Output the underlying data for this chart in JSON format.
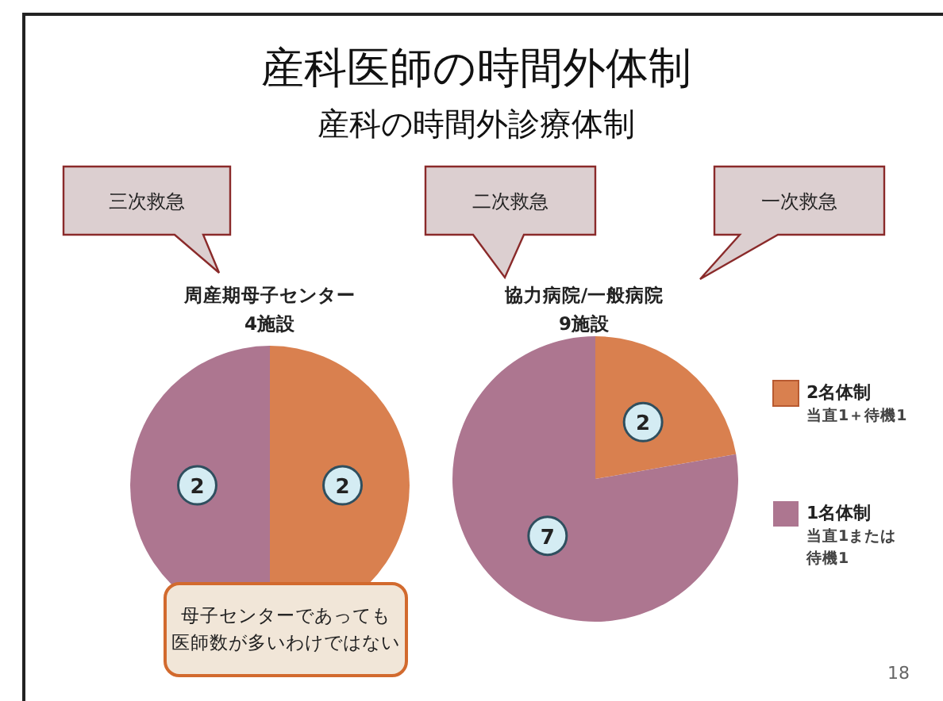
{
  "chart_data": [
    {
      "type": "other",
      "title": "産科医師の時間外体制",
      "subtitle": "産科の時間外診療体制",
      "annotations": [
        "三次救急",
        "二次救急",
        "一次救急",
        "母子センターであっても医師数が多いわけではない",
        "18"
      ]
    },
    {
      "type": "pie",
      "title": "周産期母子センター",
      "subtitle": "4施設",
      "values": [
        2,
        2
      ],
      "colors": [
        "#d9804f",
        "#ad7690"
      ],
      "data_labels": true
    },
    {
      "type": "pie",
      "title": "協力病院/一般病院",
      "subtitle": "9施設",
      "categories": [
        "2名体制当直1＋待機1",
        "1名体制当直1または待機1"
      ],
      "values": [
        2,
        7
      ],
      "colors": [
        "#d9804f",
        "#ad7690"
      ],
      "data_labels": true,
      "legend": "right"
    }
  ]
}
